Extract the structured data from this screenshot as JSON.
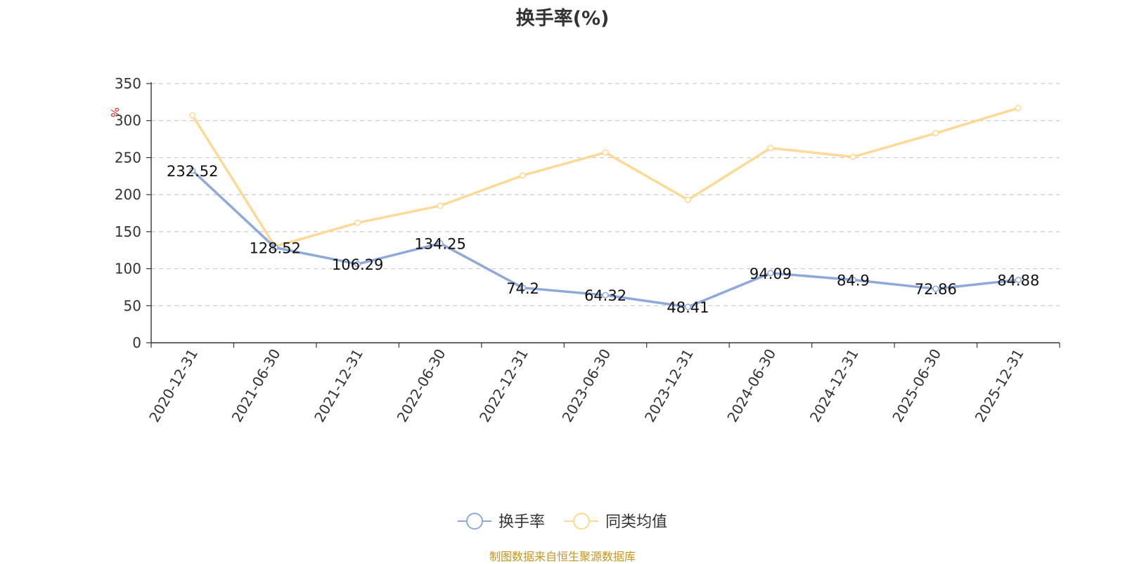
{
  "chart_data": {
    "type": "line",
    "title": "换手率(%)",
    "ylabel": "%",
    "ylim": [
      0,
      350
    ],
    "yticks": [
      0,
      50,
      100,
      150,
      200,
      250,
      300,
      350
    ],
    "grid": true,
    "legend_position": "bottom",
    "categories": [
      "2020-12-31",
      "2021-06-30",
      "2021-12-31",
      "2022-06-30",
      "2022-12-31",
      "2023-06-30",
      "2023-12-31",
      "2024-06-30",
      "2024-12-31",
      "2025-06-30",
      "2025-12-31"
    ],
    "series": [
      {
        "name": "换手率",
        "color": "#8eaadb",
        "values": [
          232.52,
          128.52,
          106.29,
          134.25,
          74.2,
          64.32,
          48.41,
          94.09,
          84.9,
          72.86,
          84.88
        ],
        "labels": [
          "232.52",
          "128.52",
          "106.29",
          "134.25",
          "74.2",
          "64.32",
          "48.41",
          "94.09",
          "84.9",
          "72.86",
          "84.88"
        ]
      },
      {
        "name": "同类均值",
        "color": "#fcd994",
        "values": [
          307,
          130,
          162,
          185,
          226,
          257,
          193,
          263,
          251,
          283,
          317
        ]
      }
    ],
    "source": "制图数据来自恒生聚源数据库"
  }
}
